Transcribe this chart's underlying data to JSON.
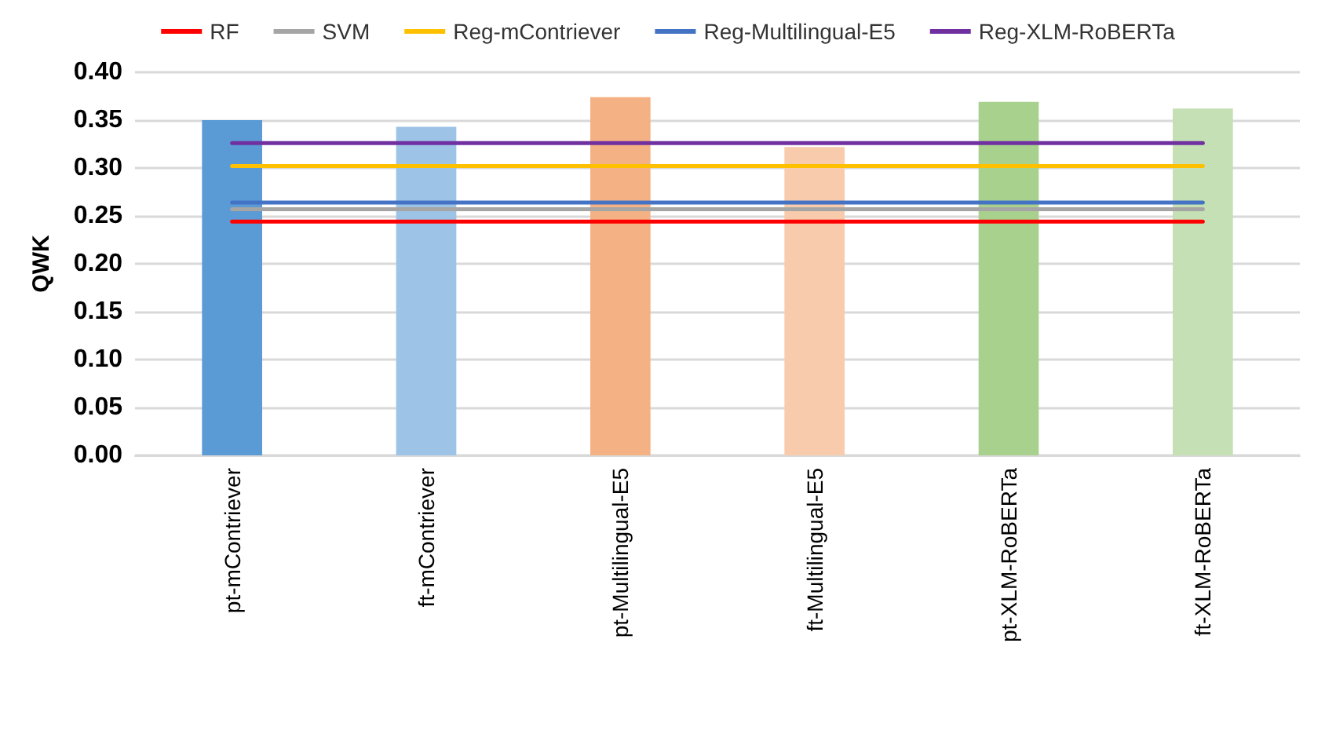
{
  "chart_data": {
    "type": "bar",
    "ylabel": "QWK",
    "categories": [
      "pt-mContriever",
      "ft-mContriever",
      "pt-Multilingual-E5",
      "ft-Multilingual-E5",
      "pt-XLM-RoBERTa",
      "ft-XLM-RoBERTa"
    ],
    "series": [
      {
        "values": [
          0.35,
          0.343,
          0.374,
          0.322,
          0.369,
          0.362
        ],
        "colors": [
          "#5b9bd5",
          "#9dc3e6",
          "#f4b183",
          "#f8cbad",
          "#a9d18e",
          "#c5e0b4"
        ]
      },
      {
        "type": "line",
        "name": "RF",
        "color": "#ff0000",
        "values": [
          0.244,
          0.244,
          0.244,
          0.244,
          0.244,
          0.244
        ]
      },
      {
        "type": "line",
        "name": "SVM",
        "color": "#a5a5a5",
        "values": [
          0.257,
          0.257,
          0.257,
          0.257,
          0.257,
          0.257
        ]
      },
      {
        "type": "line",
        "name": "Reg-mContriever",
        "color": "#ffc000",
        "values": [
          0.302,
          0.302,
          0.302,
          0.302,
          0.302,
          0.302
        ]
      },
      {
        "type": "line",
        "name": "Reg-Multilingual-E5",
        "color": "#4472c4",
        "values": [
          0.264,
          0.264,
          0.264,
          0.264,
          0.264,
          0.264
        ]
      },
      {
        "type": "line",
        "name": "Reg-XLM-RoBERTa",
        "color": "#7030a0",
        "values": [
          0.326,
          0.326,
          0.326,
          0.326,
          0.326,
          0.326
        ]
      }
    ],
    "ylim": [
      0,
      0.4
    ],
    "yticks": [
      {
        "value": 0,
        "label": "0.00"
      },
      {
        "value": 0.05,
        "label": "0.05"
      },
      {
        "value": 0.1,
        "label": "0.10"
      },
      {
        "value": 0.15,
        "label": "0.15"
      },
      {
        "value": 0.2,
        "label": "0.20"
      },
      {
        "value": 0.25,
        "label": "0.25"
      },
      {
        "value": 0.3,
        "label": "0.30"
      },
      {
        "value": 0.35,
        "label": "0.35"
      },
      {
        "value": 0.4,
        "label": "0.40"
      }
    ],
    "grid": "y",
    "legend": "top",
    "marker": "none",
    "line_style": "solid"
  }
}
